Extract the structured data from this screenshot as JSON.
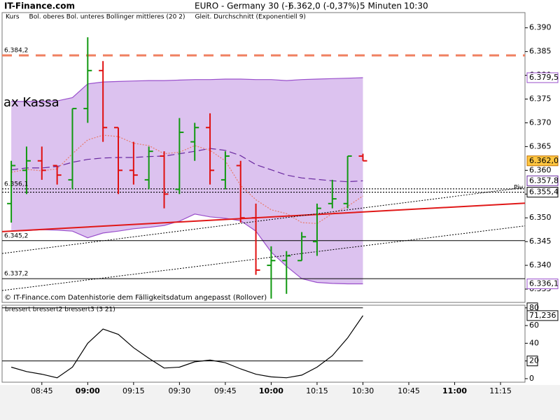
{
  "header": {
    "site": "IT-Finance.com",
    "instrument": "EURO - Germany 30 (-)",
    "quote": "6.362,0 (-0,37%)",
    "interval": "5 Minuten",
    "time": "10:30"
  },
  "chart_data": [
    {
      "type": "ohlc",
      "legend": [
        {
          "label": "Kurs",
          "color": "#000000"
        },
        {
          "label": "Bol. oberes Bol. unteres Bollinger mittleres (20 2)",
          "color": "#8a3cc0"
        },
        {
          "label": "Gleit. Durchschnitt (Exponentiell 9)",
          "color": "#e89080"
        }
      ],
      "annotation": "ax Kassa",
      "pivot_label": "Piv",
      "footer": "© IT-Finance.com  Datenhistorie dem Fälligkeitsdatum angepasst (Rollover)",
      "x": [
        "08:35",
        "08:40",
        "08:45",
        "08:50",
        "08:55",
        "09:00",
        "09:05",
        "09:10",
        "09:15",
        "09:20",
        "09:25",
        "09:30",
        "09:35",
        "09:40",
        "09:45",
        "09:50",
        "09:55",
        "10:00",
        "10:05",
        "10:10",
        "10:15",
        "10:20",
        "10:25",
        "10:30"
      ],
      "open": [
        6353,
        6360,
        6362,
        6361,
        6358,
        6373,
        6381,
        6369,
        6360,
        6358,
        6363,
        6356,
        6366,
        6369,
        6358,
        6361,
        6350,
        6340,
        6341,
        6341,
        6345,
        6353,
        6353,
        6363
      ],
      "high": [
        6362,
        6365,
        6365,
        6361,
        6373,
        6388,
        6383,
        6369,
        6366,
        6365,
        6364,
        6371,
        6370,
        6372,
        6364,
        6362,
        6353,
        6344,
        6343,
        6347,
        6353,
        6358,
        6363,
        6363.5
      ],
      "low": [
        6349,
        6355,
        6358,
        6357,
        6356,
        6370,
        6366,
        6355,
        6357,
        6356,
        6352,
        6355,
        6362,
        6357,
        6356,
        6349,
        6338,
        6333,
        6334,
        6341,
        6342,
        6352,
        6352,
        6362
      ],
      "close": [
        6361,
        6362,
        6360,
        6359,
        6373,
        6381,
        6369,
        6360,
        6359,
        6364,
        6355,
        6368,
        6369,
        6360,
        6363,
        6350,
        6339,
        6341,
        6342,
        6346,
        6352,
        6354,
        6363,
        6362
      ],
      "close_labels": [
        null,
        null,
        null,
        null,
        null,
        null,
        null,
        null,
        null,
        null,
        null,
        null,
        null,
        null,
        null,
        null,
        null,
        null,
        null,
        null,
        null,
        null,
        null,
        "6.362,0"
      ],
      "up_color": "#119911",
      "down_color": "#e01010",
      "band_fill": "#dcc2ef",
      "series": [
        {
          "color": "#9a50cc",
          "style": "solid",
          "values": [
            6374.5,
            6374.5,
            6374.5,
            6374.6,
            6375.3,
            6378.2,
            6378.6,
            6378.7,
            6378.8,
            6378.9,
            6378.9,
            6379.0,
            6379.1,
            6379.1,
            6379.2,
            6379.2,
            6379.1,
            6379.1,
            6378.9,
            6379.1,
            6379.2,
            6379.3,
            6379.4,
            6379.5
          ],
          "value_labels": [
            null,
            null,
            null,
            null,
            null,
            null,
            null,
            null,
            null,
            null,
            null,
            null,
            null,
            null,
            null,
            null,
            null,
            null,
            null,
            null,
            null,
            null,
            null,
            "6.379,5"
          ]
        },
        {
          "color": "#9a50cc",
          "style": "solid",
          "values": [
            6347.2,
            6347.3,
            6347.5,
            6347.4,
            6347.2,
            6345.8,
            6346.8,
            6347.2,
            6347.7,
            6348.0,
            6348.4,
            6349.3,
            6350.8,
            6350.2,
            6349.9,
            6349.4,
            6347.2,
            6342.8,
            6339.8,
            6337.2,
            6336.4,
            6336.2,
            6336.1,
            6336.1
          ],
          "value_labels": [
            null,
            null,
            null,
            null,
            null,
            null,
            null,
            null,
            null,
            null,
            null,
            null,
            null,
            null,
            null,
            null,
            null,
            null,
            null,
            null,
            null,
            null,
            null,
            "6.336,1"
          ]
        },
        {
          "color": "#6a2aa0",
          "style": "dashed",
          "values": [
            6360.1,
            6360.5,
            6360.5,
            6360.8,
            6361.7,
            6362.3,
            6362.6,
            6362.7,
            6362.7,
            6362.9,
            6363.0,
            6363.5,
            6364.0,
            6364.6,
            6364.2,
            6363.1,
            6361.2,
            6360.1,
            6359.0,
            6358.4,
            6358.1,
            6357.8,
            6357.6,
            6357.8
          ],
          "value_labels": [
            null,
            null,
            null,
            null,
            null,
            null,
            null,
            null,
            null,
            null,
            null,
            null,
            null,
            null,
            null,
            null,
            null,
            null,
            null,
            null,
            null,
            null,
            null,
            "6.357,8"
          ]
        },
        {
          "color": "#e87a6a",
          "style": "dotted",
          "values": [
            6359.6,
            6360.2,
            6359.9,
            6360.3,
            6363.5,
            6366.4,
            6367.4,
            6367.1,
            6365.7,
            6365.2,
            6363.5,
            6363.8,
            6365.2,
            6364.2,
            6362.0,
            6356.8,
            6353.8,
            6351.7,
            6350.9,
            6349.0,
            6348.8,
            6350.9,
            6352.4,
            6354.6
          ]
        }
      ],
      "levels": [
        {
          "value": 6384.2,
          "label": "6.384,2",
          "label_side": "left",
          "color": "#f08060",
          "style": "longdash",
          "width": 3
        },
        {
          "value": 6356.1,
          "label": "6.356,1",
          "label_side": "left",
          "color": "#000000",
          "style": "dotted",
          "width": 1.2
        },
        {
          "value": 6355.4,
          "label": "6.355,4",
          "label_side": "right",
          "color": "#000000",
          "style": "dotted",
          "width": 1.2
        },
        {
          "value": 6345.2,
          "label": "6.345,2",
          "label_side": "left",
          "color": "#000000",
          "style": "solid",
          "width": 1
        },
        {
          "value": 6337.2,
          "label": "6.337,2",
          "label_side": "left",
          "color": "#000000",
          "style": "solid",
          "width": 1
        }
      ],
      "trendlines": [
        {
          "x": [
            "08:32",
            "11:23"
          ],
          "values": [
            6347.1,
            6353.1
          ],
          "color": "#e01818",
          "style": "solid",
          "width": 2
        },
        {
          "x": [
            "08:32",
            "11:23"
          ],
          "values": [
            6342.5,
            6356.4
          ],
          "color": "#000000",
          "style": "dotted",
          "width": 1
        },
        {
          "x": [
            "08:32",
            "11:23"
          ],
          "values": [
            6334.7,
            6348.3
          ],
          "color": "#000000",
          "style": "dotted",
          "width": 1
        }
      ],
      "xlim": [
        "08:32",
        "11:23"
      ],
      "xticks": [
        "08:45",
        "09:00",
        "09:15",
        "09:30",
        "09:45",
        "10:00",
        "10:15",
        "10:30",
        "10:45",
        "11:00",
        "11:15"
      ],
      "ylim": [
        6332.2,
        6393.2
      ],
      "yticks": [
        {
          "value": 6335,
          "label": "6.335"
        },
        {
          "value": 6340,
          "label": "6.340"
        },
        {
          "value": 6345,
          "label": "6.345"
        },
        {
          "value": 6350,
          "label": "6.350"
        },
        {
          "value": 6355,
          "label": "6.355"
        },
        {
          "value": 6360,
          "label": "6.360"
        },
        {
          "value": 6365,
          "label": "6.365"
        },
        {
          "value": 6370,
          "label": "6.370"
        },
        {
          "value": 6375,
          "label": "6.375"
        },
        {
          "value": 6380,
          "label": "6.380"
        },
        {
          "value": 6385,
          "label": "6.385"
        },
        {
          "value": 6390,
          "label": "6.390"
        }
      ]
    },
    {
      "type": "line",
      "title": "bressert bressert2 bressert3 (3 21)",
      "series": [
        {
          "color": "#000000",
          "values": [
            13,
            8,
            5,
            1,
            13,
            40,
            56,
            50,
            35,
            23,
            12,
            13,
            19,
            21,
            18,
            11,
            5,
            2,
            1,
            4,
            13,
            26,
            46,
            71.236
          ],
          "value_labels": [
            null,
            null,
            null,
            null,
            null,
            null,
            null,
            null,
            null,
            null,
            null,
            null,
            null,
            null,
            null,
            null,
            null,
            null,
            null,
            null,
            null,
            null,
            null,
            "71,236"
          ]
        }
      ],
      "levels": [
        {
          "value": 20,
          "color": "#000000"
        },
        {
          "value": 80,
          "color": "#000000"
        }
      ],
      "ylim": [
        -4,
        83
      ],
      "yticks": [
        0,
        20,
        40,
        60,
        80
      ]
    }
  ]
}
